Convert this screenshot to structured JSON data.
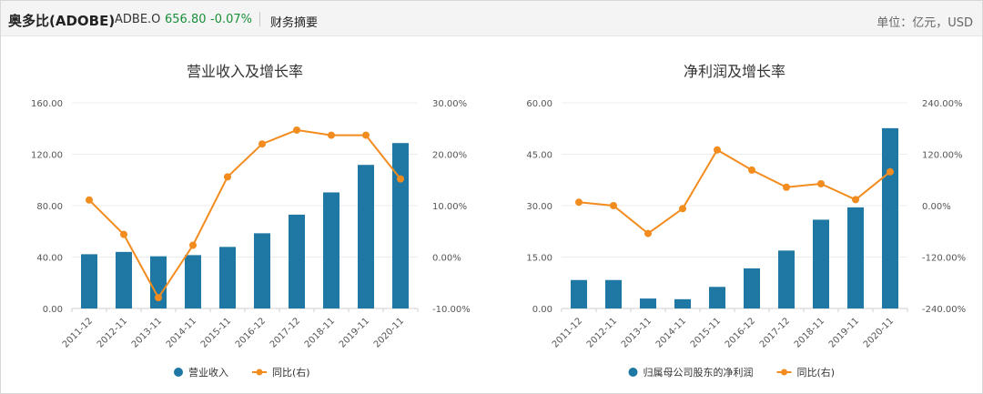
{
  "header": {
    "company": "奥多比(ADOBE)",
    "ticker": "ADBE.O",
    "price": "656.80",
    "change": "-0.07%",
    "section": "财务摘要",
    "unit": "单位：亿元，USD"
  },
  "colors": {
    "bar": "#1f77a4",
    "line": "#f28c1e",
    "up": "#1a8f3a"
  },
  "chart_data": [
    {
      "type": "bar",
      "title": "营业收入及增长率",
      "categories": [
        "2011-12",
        "2012-11",
        "2013-11",
        "2014-11",
        "2015-11",
        "2016-12",
        "2017-12",
        "2018-11",
        "2019-11",
        "2020-11"
      ],
      "series": [
        {
          "name": "营业收入",
          "type": "bar",
          "axis": "left",
          "values": [
            42.2,
            44.0,
            40.6,
            41.5,
            47.9,
            58.5,
            73.0,
            90.3,
            111.7,
            128.7
          ]
        },
        {
          "name": "同比(右)",
          "type": "line",
          "axis": "right",
          "values": [
            11.1,
            4.4,
            -7.9,
            2.3,
            15.6,
            22.0,
            24.7,
            23.7,
            23.7,
            15.2
          ]
        }
      ],
      "y_left": {
        "min": 0,
        "max": 160,
        "ticks": [
          "160.00",
          "120.00",
          "80.00",
          "40.00",
          "0.00"
        ]
      },
      "y_right": {
        "min": -10,
        "max": 30,
        "ticks": [
          "30.00%",
          "20.00%",
          "10.00%",
          "0.00%",
          "-10.00%"
        ]
      },
      "legend": [
        "营业收入",
        "同比(右)"
      ],
      "legend_position": "bottom"
    },
    {
      "type": "bar",
      "title": "净利润及增长率",
      "categories": [
        "2011-12",
        "2012-11",
        "2013-11",
        "2014-11",
        "2015-11",
        "2016-12",
        "2017-12",
        "2018-11",
        "2019-11",
        "2020-11"
      ],
      "series": [
        {
          "name": "归属母公司股东的净利润",
          "type": "bar",
          "axis": "left",
          "values": [
            8.3,
            8.3,
            2.9,
            2.7,
            6.3,
            11.7,
            16.9,
            25.9,
            29.5,
            52.6
          ]
        },
        {
          "name": "同比(右)",
          "type": "line",
          "axis": "right",
          "values": [
            8.0,
            0.0,
            -65.0,
            -7.0,
            130.0,
            83.0,
            43.0,
            51.0,
            14.0,
            79.0
          ]
        }
      ],
      "y_left": {
        "min": 0,
        "max": 60,
        "ticks": [
          "60.00",
          "45.00",
          "30.00",
          "15.00",
          "0.00"
        ]
      },
      "y_right": {
        "min": -240,
        "max": 240,
        "ticks": [
          "240.00%",
          "120.00%",
          "0.00%",
          "-120.00%",
          "-240.00%"
        ]
      },
      "legend": [
        "归属母公司股东的净利润",
        "同比(右)"
      ],
      "legend_position": "bottom"
    }
  ]
}
